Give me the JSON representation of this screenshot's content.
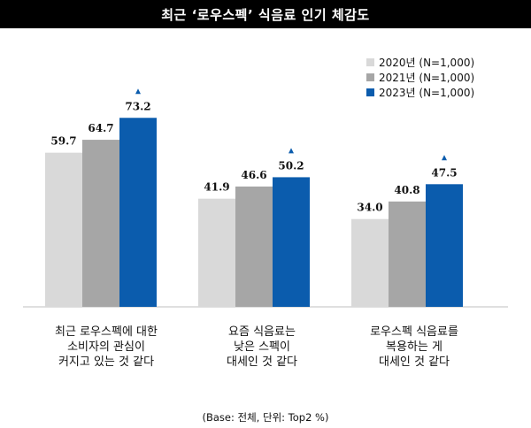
{
  "chart_data": {
    "type": "bar",
    "title": "최근 ‘로우스펙’ 식음료 인기 체감도",
    "categories": [
      "최근 로우스펙에 대한\n소비자의 관심이\n커지고 있는 것 같다",
      "요즘 식음료는\n낮은 스펙이\n대세인 것 같다",
      "로우스펙 식음료를\n복용하는 게\n대세인 것 같다"
    ],
    "series": [
      {
        "name": "2020년 (N=1,000)",
        "color": "#d9d9d9",
        "values": [
          59.7,
          41.9,
          34.0
        ]
      },
      {
        "name": "2021년 (N=1,000)",
        "color": "#a6a6a6",
        "values": [
          64.7,
          46.6,
          40.8
        ]
      },
      {
        "name": "2023년 (N=1,000)",
        "color": "#0b5cad",
        "values": [
          73.2,
          50.2,
          47.5
        ]
      }
    ],
    "value_labels": [
      [
        "59.7",
        "64.7",
        "73.2"
      ],
      [
        "41.9",
        "46.6",
        "50.2"
      ],
      [
        "34.0",
        "40.8",
        "47.5"
      ]
    ],
    "ylim": [
      0,
      100
    ],
    "legend_position": "top-right",
    "up_marker_color": "#0b5cad",
    "footnote": "(Base: 전체, 단위: Top2 %)"
  }
}
